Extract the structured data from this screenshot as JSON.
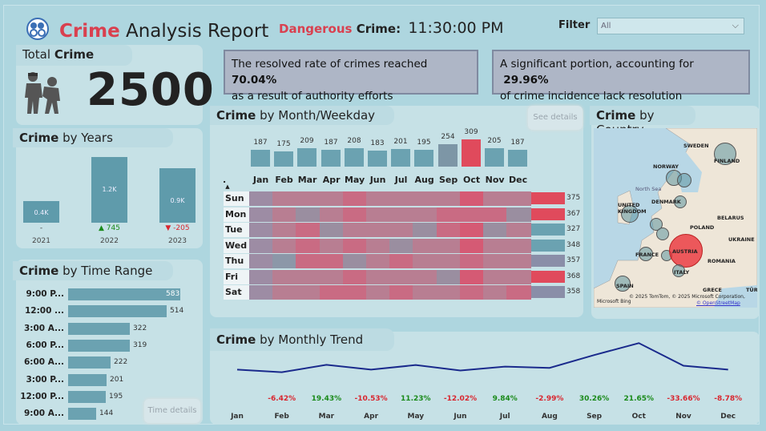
{
  "header": {
    "title_strong": "Crime",
    "title_rest": " Analysis Report",
    "dangerous_label": "Dangerous",
    "crime_label": "Crime",
    "colon": ":",
    "dangerous_time": "11:30:00 PM",
    "filter_label": "Filter",
    "filter_value": "All"
  },
  "notes": {
    "resolved_text": "The resolved rate of crimes reached",
    "resolved_pct": "70.04%",
    "resolved_text2": "as a result of authority efforts",
    "unresolved_text": "A significant portion, accounting for",
    "unresolved_pct": "29.96%",
    "unresolved_text2": "of crime incidence lack resolution"
  },
  "total": {
    "label_a": "Total",
    "label_b": "Crime",
    "value": "2500"
  },
  "years": {
    "title_a": "Crime",
    "title_b": "by Years",
    "items": [
      {
        "year": "2021",
        "label": "0.4K",
        "change": "-",
        "level": 0.33
      },
      {
        "year": "2022",
        "label": "1.2K",
        "change": "▲ 745",
        "level": 1.0
      },
      {
        "year": "2023",
        "label": "0.9K",
        "change": "▼ -205",
        "level": 0.83
      }
    ]
  },
  "time_range": {
    "title_a": "Crime",
    "title_b": "by Time Range",
    "button": "Time details",
    "items": [
      {
        "label": "9:00 P...",
        "value": 583
      },
      {
        "label": "12:00 ...",
        "value": 514
      },
      {
        "label": "3:00 A...",
        "value": 322
      },
      {
        "label": "6:00 P...",
        "value": 319
      },
      {
        "label": "6:00 A...",
        "value": 222
      },
      {
        "label": "3:00 P...",
        "value": 201
      },
      {
        "label": "12:00 P...",
        "value": 195
      },
      {
        "label": "9:00 A...",
        "value": 144
      }
    ]
  },
  "month_weekday": {
    "title_a": "Crime",
    "title_b": "by Month/Weekday",
    "button": "See details",
    "corner": ".",
    "months": [
      "Jan",
      "Feb",
      "Mar",
      "Apr",
      "May",
      "Jun",
      "Jul",
      "Aug",
      "Sep",
      "Oct",
      "Nov",
      "Dec"
    ],
    "month_values": [
      187,
      175,
      209,
      187,
      208,
      183,
      201,
      195,
      254,
      309,
      205,
      187
    ],
    "days": [
      "Sun",
      "Mon",
      "Tue",
      "Wed",
      "Thu",
      "Fri",
      "Sat"
    ],
    "day_values": [
      375,
      367,
      327,
      348,
      357,
      368,
      358
    ]
  },
  "country": {
    "title_a": "Crime",
    "title_b": "by Country",
    "labels": [
      "SWEDEN",
      "FINLAND",
      "NORWAY",
      "UNITED KINGDOM",
      "DENMARK",
      "POLAND",
      "BELARUS",
      "UKRAINE",
      "FRANCE",
      "AUSTRIA",
      "ROMANIA",
      "ITALY",
      "SPAIN",
      "GRECE",
      "TÜR",
      "North Sea"
    ],
    "credit": "© 2025 TomTom, © 2025 Microsoft Corporation,",
    "credit2": "© OpenStreetMap",
    "bing": "Microsoft Bing"
  },
  "trend": {
    "title_a": "Crime",
    "title_b": "by Monthly Trend",
    "months": [
      "Jan",
      "Feb",
      "Mar",
      "Apr",
      "May",
      "Jun",
      "Jul",
      "Aug",
      "Sep",
      "Oct",
      "Nov",
      "Dec"
    ],
    "changes": [
      "",
      "-6.42%",
      "19.43%",
      "-10.53%",
      "11.23%",
      "-12.02%",
      "9.84%",
      "-2.99%",
      "30.26%",
      "21.65%",
      "-33.66%",
      "-8.78%"
    ],
    "values": [
      187,
      175,
      209,
      187,
      208,
      183,
      201,
      195,
      254,
      309,
      205,
      187
    ]
  },
  "colors": {
    "accent_red": "#d9404f",
    "bar_teal": "#6ba2b1",
    "line_blue": "#1a2a8c"
  }
}
